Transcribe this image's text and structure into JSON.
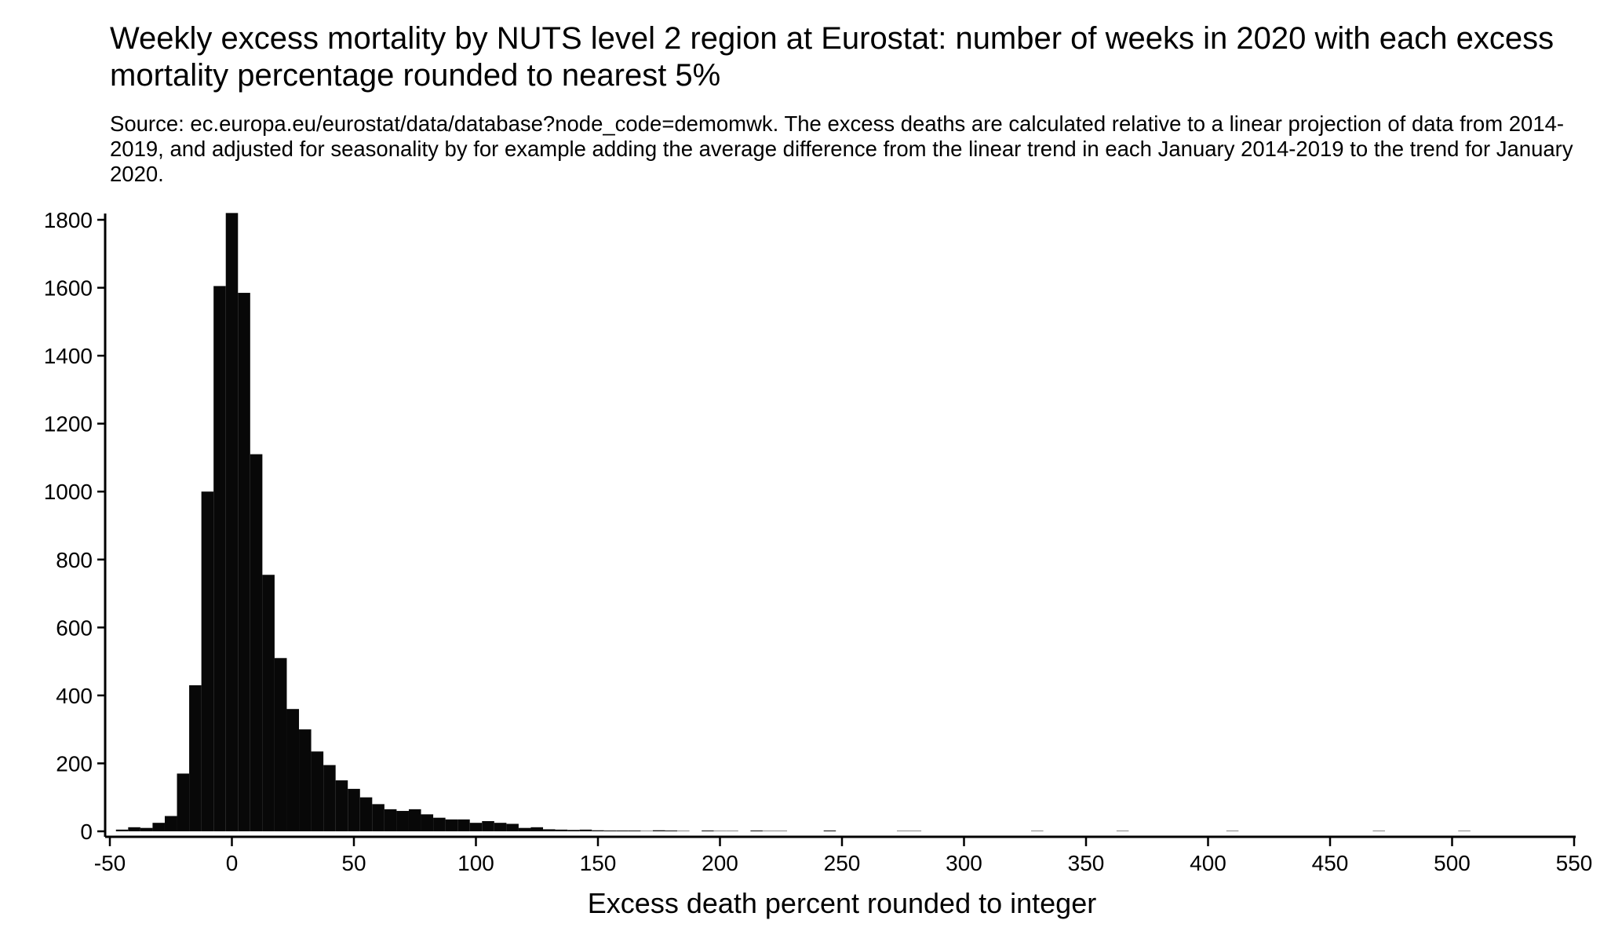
{
  "chart_data": {
    "type": "bar",
    "title": "Weekly excess mortality by NUTS level 2 region at Eurostat: number of weeks in 2020 with each excess mortality percentage rounded to nearest 5%",
    "subtitle": "Source: ec.europa.eu/eurostat/data/database?node_code=demomwk. The excess deaths are calculated relative to a linear projection of data from 2014-2019, and adjusted for seasonality by for example adding the average difference from the linear trend in each January 2014-2019 to the trend for January 2020.",
    "xlabel": "Excess death percent rounded to integer",
    "ylabel": "",
    "xlim": [
      -50,
      550
    ],
    "ylim": [
      0,
      1820
    ],
    "bin_width": 5,
    "xticks": [
      -50,
      0,
      50,
      100,
      150,
      200,
      250,
      300,
      350,
      400,
      450,
      500,
      550
    ],
    "yticks": [
      0,
      200,
      400,
      600,
      800,
      1000,
      1200,
      1400,
      1600,
      1800
    ],
    "grid": false,
    "bar_color": "#080808",
    "x": [
      -45,
      -40,
      -35,
      -30,
      -25,
      -20,
      -15,
      -10,
      -5,
      0,
      5,
      10,
      15,
      20,
      25,
      30,
      35,
      40,
      45,
      50,
      55,
      60,
      65,
      70,
      75,
      80,
      85,
      90,
      95,
      100,
      105,
      110,
      115,
      120,
      125,
      130,
      135,
      140,
      145,
      150,
      155,
      160,
      165,
      170,
      175,
      180,
      185,
      195,
      200,
      205,
      215,
      220,
      225,
      245,
      275,
      280,
      330,
      365,
      410,
      470,
      505
    ],
    "values": [
      5,
      12,
      10,
      25,
      45,
      170,
      430,
      1000,
      1605,
      1820,
      1585,
      1110,
      755,
      510,
      360,
      300,
      235,
      195,
      150,
      125,
      100,
      80,
      65,
      60,
      65,
      50,
      40,
      35,
      35,
      25,
      30,
      25,
      22,
      10,
      12,
      6,
      5,
      4,
      5,
      3,
      2,
      2,
      2,
      1,
      3,
      2,
      1,
      2,
      1,
      1,
      2,
      1,
      1,
      2,
      1,
      1,
      1,
      1,
      1,
      1,
      1
    ]
  }
}
